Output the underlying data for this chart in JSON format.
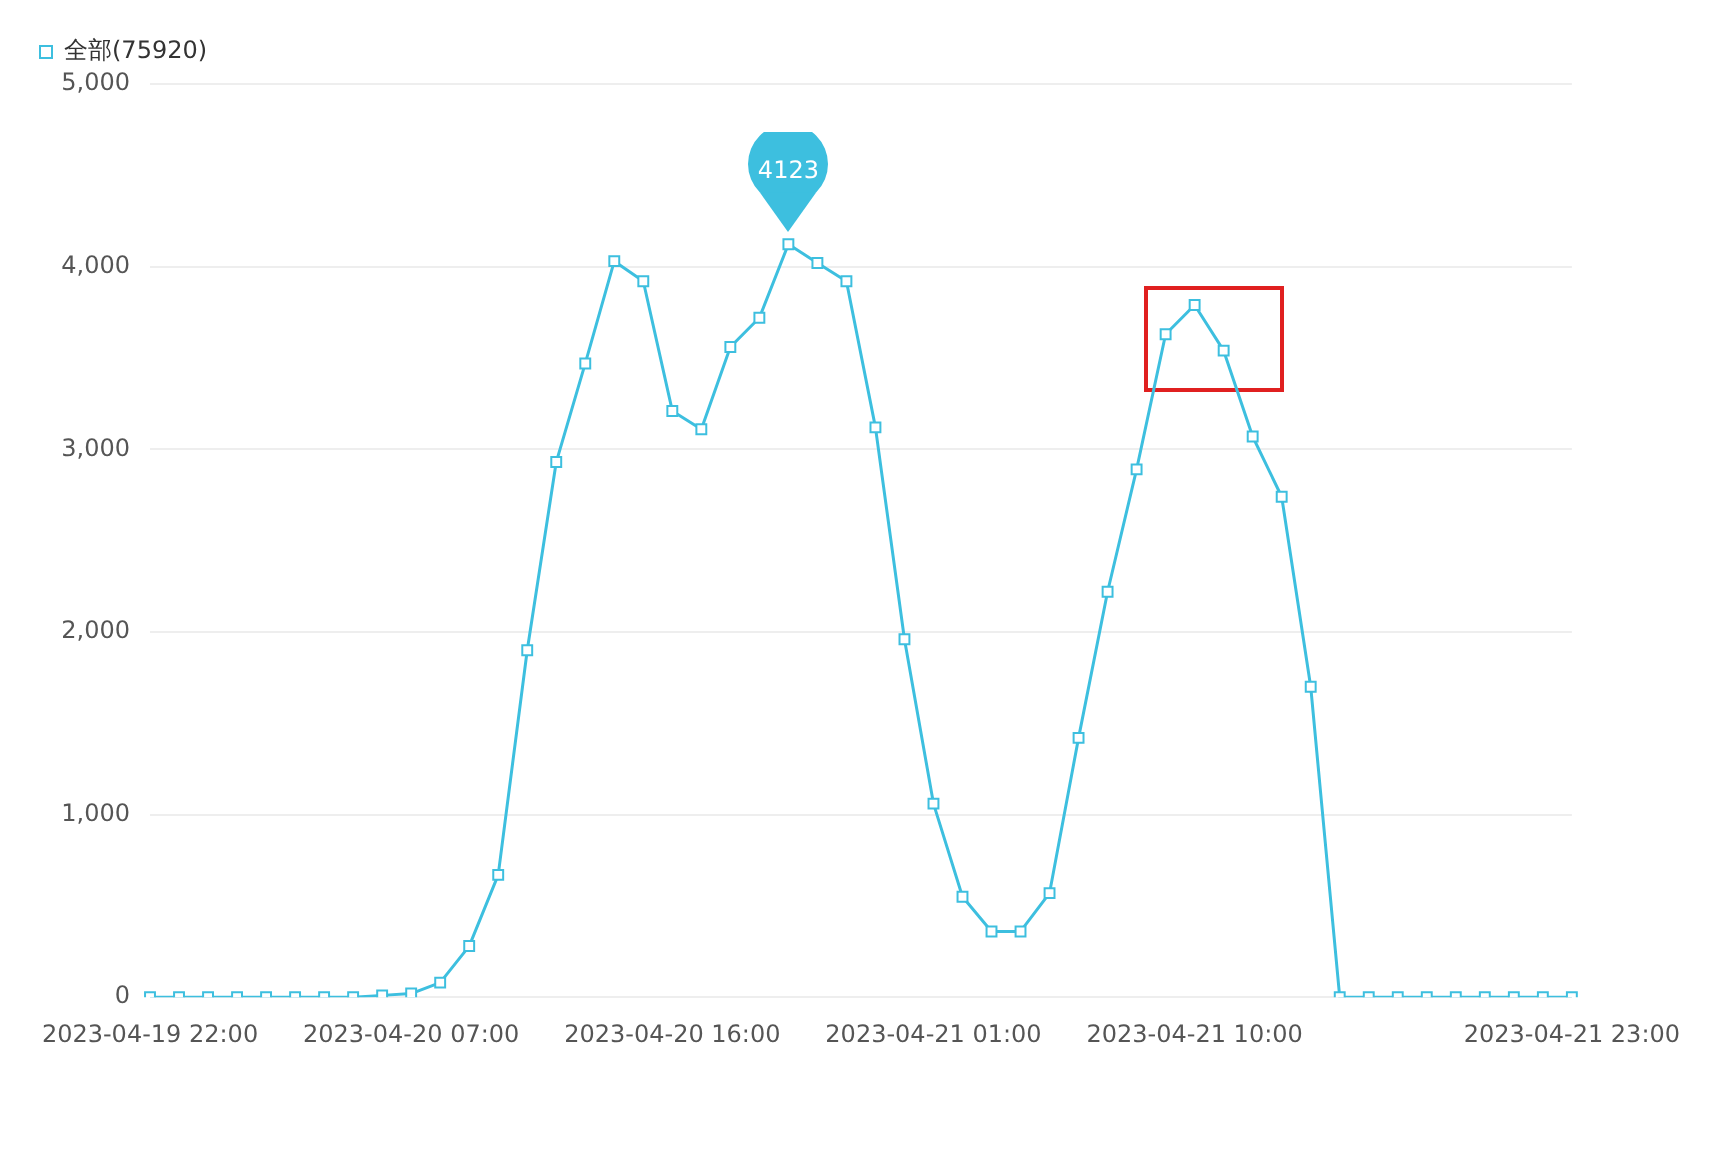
{
  "chart_data": {
    "type": "line",
    "categories": [
      "2023-04-19 22:00",
      null,
      null,
      null,
      null,
      null,
      null,
      null,
      null,
      "2023-04-20 07:00",
      null,
      null,
      null,
      null,
      null,
      null,
      null,
      null,
      "2023-04-20 16:00",
      null,
      null,
      null,
      null,
      null,
      null,
      null,
      null,
      "2023-04-21 01:00",
      null,
      null,
      null,
      null,
      null,
      null,
      null,
      null,
      "2023-04-21 10:00",
      null,
      null,
      null,
      null,
      null,
      null,
      null,
      null,
      null,
      null,
      null,
      null,
      "2023-04-21 23:00"
    ],
    "series": [
      {
        "name": "全部(75920)",
        "color": "#3dbfdf",
        "values": [
          0,
          0,
          0,
          0,
          0,
          0,
          0,
          0,
          10,
          20,
          80,
          280,
          670,
          1900,
          2930,
          3470,
          4030,
          3920,
          3210,
          3110,
          3560,
          3720,
          4123,
          4020,
          3920,
          3120,
          1960,
          1060,
          550,
          360,
          360,
          570,
          1420,
          2220,
          2890,
          3630,
          3790,
          3540,
          3070,
          2740,
          1700,
          0,
          0,
          0,
          0,
          0,
          0,
          0,
          0,
          0
        ],
        "value_labels": [
          null,
          null,
          null,
          null,
          null,
          null,
          null,
          null,
          null,
          null,
          null,
          null,
          null,
          null,
          null,
          null,
          null,
          null,
          null,
          null,
          null,
          null,
          "4123",
          null,
          null,
          null,
          null,
          null,
          null,
          null,
          null,
          null,
          null,
          null,
          null,
          null,
          null,
          null,
          null,
          null,
          null,
          null,
          null,
          null,
          null,
          null,
          null,
          null,
          null,
          null
        ]
      }
    ],
    "ylim": [
      0,
      5000
    ],
    "yticks": [
      0,
      {
        "value": 1000,
        "label": "1,000"
      },
      {
        "value": 2000,
        "label": "2,000"
      },
      {
        "value": 3000,
        "label": "3,000"
      },
      {
        "value": 4000,
        "label": "4,000"
      },
      {
        "value": 5000,
        "label": "5,000"
      }
    ],
    "grid": "y",
    "legend": "top left",
    "marker": "square",
    "line_style": "solid"
  }
}
